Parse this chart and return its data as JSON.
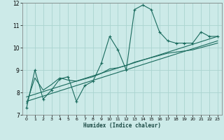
{
  "xlabel": "Humidex (Indice chaleur)",
  "background_color": "#cceae8",
  "grid_color": "#aad4d0",
  "line_color": "#1a6b5e",
  "xlim": [
    -0.5,
    23.5
  ],
  "ylim": [
    7,
    12
  ],
  "yticks": [
    7,
    8,
    9,
    10,
    11,
    12
  ],
  "xticks": [
    0,
    1,
    2,
    3,
    4,
    5,
    6,
    7,
    8,
    9,
    10,
    11,
    12,
    13,
    14,
    15,
    16,
    17,
    18,
    19,
    20,
    21,
    22,
    23
  ],
  "series1_x": [
    0,
    1,
    2,
    3,
    4,
    5,
    6,
    7,
    8,
    9,
    10,
    11,
    12,
    13,
    14,
    15,
    16,
    17,
    18,
    19,
    20,
    21,
    22,
    23
  ],
  "series1_y": [
    7.3,
    9.0,
    7.7,
    8.1,
    8.6,
    8.7,
    7.6,
    8.3,
    8.5,
    9.3,
    10.5,
    9.9,
    9.0,
    11.7,
    11.9,
    11.7,
    10.7,
    10.3,
    10.2,
    10.2,
    10.2,
    10.7,
    10.5,
    10.5
  ],
  "series2_x": [
    0,
    1,
    2,
    3,
    4,
    5,
    6,
    7,
    8,
    9,
    10,
    11,
    12,
    13,
    14,
    15,
    16,
    17,
    18,
    19,
    20,
    21,
    22,
    23
  ],
  "series2_y": [
    7.5,
    8.65,
    8.1,
    8.35,
    8.65,
    8.55,
    8.5,
    8.6,
    8.7,
    8.85,
    9.05,
    9.1,
    9.2,
    9.35,
    9.45,
    9.55,
    9.65,
    9.75,
    9.8,
    9.85,
    9.9,
    10.0,
    10.1,
    10.2
  ],
  "series3_x": [
    0,
    23
  ],
  "series3_y": [
    7.6,
    10.3
  ],
  "series4_x": [
    0,
    23
  ],
  "series4_y": [
    7.8,
    10.5
  ]
}
